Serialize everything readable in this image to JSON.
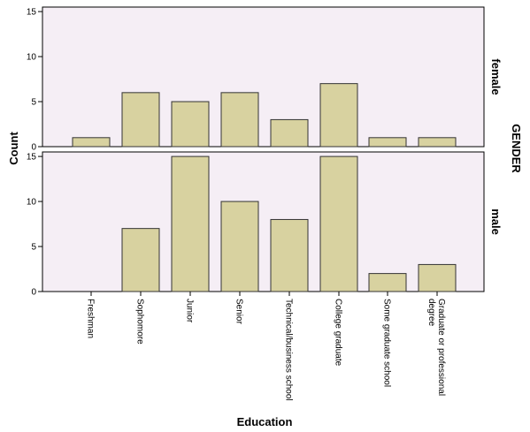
{
  "chart_data": {
    "type": "bar",
    "xlabel": "Education",
    "ylabel": "Count",
    "facet_label": "GENDER",
    "categories": [
      "Freshman",
      "Sophomore",
      "Junior",
      "Senior",
      "Technical/business school",
      "College graduate",
      "Some graduate school",
      [
        "Graduate or professional",
        "degree"
      ]
    ],
    "yticks": [
      0,
      5,
      10,
      15
    ],
    "ylim": [
      0,
      15.5
    ],
    "series": [
      {
        "name": "female",
        "values": [
          1,
          6,
          5,
          6,
          3,
          7,
          1,
          1
        ]
      },
      {
        "name": "male",
        "values": [
          0,
          7,
          15,
          10,
          8,
          15,
          2,
          3
        ]
      }
    ],
    "colors": {
      "bar": "#d8d2a0",
      "bar_edge": "#333333",
      "panel_bg": "#f5eef5",
      "frame": "#000000"
    },
    "grid": false
  }
}
